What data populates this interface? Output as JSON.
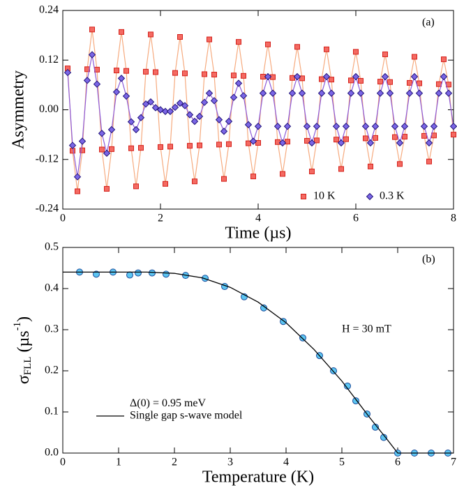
{
  "chart_data": [
    {
      "type": "scatter",
      "panel_label": "(a)",
      "xlabel": "Time (µs)",
      "ylabel": "Asymmetry",
      "xlim": [
        0,
        8
      ],
      "xticks": [
        0,
        2,
        4,
        6,
        8
      ],
      "ylim": [
        -0.24,
        0.24
      ],
      "yticks": [
        -0.24,
        -0.12,
        {
          "value": 0,
          "label": "0.00"
        },
        0.12,
        0.24
      ],
      "legend": "lower right",
      "x": [
        0.1,
        0.2,
        0.3,
        0.4,
        0.5,
        0.6,
        0.7,
        0.8,
        0.9,
        1.0,
        1.1,
        1.2,
        1.3,
        1.4,
        1.5,
        1.6,
        1.7,
        1.8,
        1.9,
        2.0,
        2.1,
        2.2,
        2.3,
        2.4,
        2.5,
        2.6,
        2.7,
        2.8,
        2.9,
        3.0,
        3.1,
        3.2,
        3.3,
        3.4,
        3.5,
        3.6,
        3.7,
        3.8,
        3.9,
        4.0,
        4.1,
        4.2,
        4.3,
        4.4,
        4.5,
        4.6,
        4.7,
        4.8,
        4.9,
        5.0,
        5.1,
        5.2,
        5.3,
        5.4,
        5.5,
        5.6,
        5.7,
        5.8,
        5.9,
        6.0,
        6.1,
        6.2,
        6.3,
        6.4,
        6.5,
        6.6,
        6.7,
        6.8,
        6.9,
        7.0,
        7.1,
        7.2,
        7.3,
        7.4,
        7.5,
        7.6,
        7.7,
        7.8,
        7.9,
        8.0
      ],
      "series": [
        {
          "name": "10 K",
          "marker": "square",
          "color": "#f46a62",
          "edge_color": "#d4201a",
          "line_color": "#f6aa7e",
          "values": [
            0.1,
            -0.099,
            -0.197,
            -0.098,
            0.098,
            0.194,
            0.097,
            -0.096,
            -0.191,
            -0.095,
            0.095,
            0.188,
            0.094,
            -0.093,
            -0.185,
            -0.092,
            0.092,
            0.182,
            0.091,
            -0.09,
            -0.179,
            -0.089,
            0.089,
            0.176,
            0.088,
            -0.087,
            -0.173,
            -0.086,
            0.086,
            0.17,
            0.085,
            -0.084,
            -0.167,
            -0.083,
            0.083,
            0.164,
            0.082,
            -0.081,
            -0.161,
            -0.08,
            0.08,
            0.158,
            0.079,
            -0.078,
            -0.155,
            -0.077,
            0.077,
            0.152,
            0.076,
            -0.075,
            -0.149,
            -0.074,
            0.074,
            0.146,
            0.073,
            -0.072,
            -0.143,
            -0.071,
            0.071,
            0.14,
            0.07,
            -0.069,
            -0.137,
            -0.068,
            0.068,
            0.134,
            0.067,
            -0.066,
            -0.131,
            -0.065,
            0.065,
            0.128,
            0.064,
            -0.063,
            -0.125,
            -0.062,
            0.062,
            0.122,
            0.061,
            -0.06
          ]
        },
        {
          "name": "0.3 K",
          "marker": "diamond",
          "color": "#7b66e6",
          "edge_color": "#22157a",
          "line_color": "#8c5ad8",
          "values": [
            0.09,
            -0.086,
            -0.162,
            -0.076,
            0.071,
            0.133,
            0.062,
            -0.057,
            -0.105,
            -0.048,
            0.043,
            0.076,
            0.033,
            -0.029,
            -0.048,
            -0.019,
            0.014,
            0.019,
            0.005,
            0.0,
            -0.004,
            -0.004,
            0.006,
            0.016,
            0.01,
            -0.012,
            -0.028,
            -0.016,
            0.018,
            0.04,
            0.022,
            -0.024,
            -0.052,
            -0.028,
            0.03,
            0.064,
            0.034,
            -0.036,
            -0.076,
            -0.04,
            0.04,
            0.08,
            0.04,
            -0.04,
            -0.08,
            -0.04,
            0.04,
            0.08,
            0.04,
            -0.04,
            -0.08,
            -0.04,
            0.04,
            0.08,
            0.04,
            -0.04,
            -0.08,
            -0.04,
            0.04,
            0.08,
            0.04,
            -0.04,
            -0.08,
            -0.04,
            0.04,
            0.08,
            0.04,
            -0.04,
            -0.08,
            -0.04,
            0.04,
            0.08,
            0.04,
            -0.04,
            -0.08,
            -0.04,
            0.04,
            0.08,
            0.04,
            -0.04
          ]
        }
      ]
    },
    {
      "type": "scatter",
      "panel_label": "(b)",
      "xlabel": "Temperature (K)",
      "ylabel": [
        "σ",
        "FLL",
        " (µs",
        "-1",
        ")"
      ],
      "field_label": "H = 30 mT",
      "gap_label": "Δ(0) = 0.95 meV",
      "xlim": [
        0,
        7
      ],
      "xticks": [
        0,
        1,
        2,
        3,
        4,
        5,
        6,
        7
      ],
      "ylim": [
        0,
        0.5
      ],
      "yticks": [
        {
          "value": 0,
          "label": "0.0"
        },
        0.1,
        0.2,
        0.3,
        0.4,
        0.5
      ],
      "legend": "lower left",
      "series": [
        {
          "marker": "circle",
          "color": "#5cc6f2",
          "edge_color": "#1b4b9a",
          "x": [
            0.3,
            0.6,
            0.9,
            1.2,
            1.35,
            1.6,
            1.85,
            2.2,
            2.55,
            2.9,
            3.25,
            3.6,
            3.95,
            4.3,
            4.6,
            4.85,
            5.1,
            5.25,
            5.45,
            5.6,
            5.75,
            6.0,
            6.3,
            6.6,
            6.9
          ],
          "values": [
            0.44,
            0.435,
            0.44,
            0.433,
            0.438,
            0.438,
            0.435,
            0.432,
            0.425,
            0.405,
            0.38,
            0.353,
            0.32,
            0.28,
            0.237,
            0.2,
            0.163,
            0.127,
            0.095,
            0.063,
            0.038,
            0,
            0,
            0,
            0
          ]
        },
        {
          "name": "Single gap s-wave model",
          "line_color": "#000000",
          "x": [
            0,
            1,
            1.5,
            2,
            2.5,
            3,
            3.5,
            4,
            4.5,
            5,
            5.5,
            5.8,
            6.0,
            7
          ],
          "values": [
            0.44,
            0.44,
            0.44,
            0.437,
            0.426,
            0.403,
            0.367,
            0.317,
            0.252,
            0.175,
            0.086,
            0.035,
            0,
            0
          ]
        }
      ]
    }
  ]
}
